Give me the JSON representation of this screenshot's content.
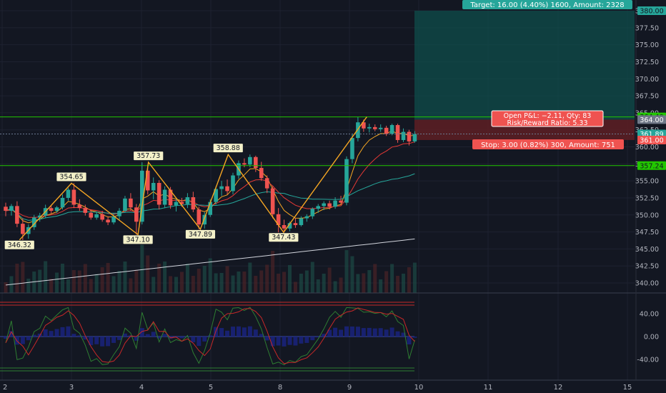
{
  "colors": {
    "background": "#131722",
    "up": "#26a69a",
    "down": "#ef5350",
    "ma_fast": "#f5a623",
    "ma_mid": "#e53935",
    "ma_slow": "#26a69a",
    "ma_long": "#d1d4dc",
    "level_line": "#22c700",
    "target_zone": "#0f4d4b",
    "stop_zone": "#5a1e24",
    "zigzag": "#f5a623"
  },
  "price_axis": {
    "ticks": [
      "380.00",
      "377.50",
      "375.00",
      "372.50",
      "370.00",
      "367.50",
      "365.00",
      "362.50",
      "360.00",
      "357.50",
      "355.00",
      "352.50",
      "350.00",
      "347.50",
      "345.00",
      "342.50",
      "340.00"
    ],
    "badges": [
      {
        "text": "380.00",
        "kind": "target"
      },
      {
        "text": "364.40",
        "kind": "level"
      },
      {
        "text": "364.00",
        "kind": "entry"
      },
      {
        "text": "361.89",
        "kind": "last"
      },
      {
        "text": "361.00",
        "kind": "stop"
      },
      {
        "text": "357.24",
        "kind": "level"
      }
    ]
  },
  "oscillator_axis": {
    "ticks": [
      "40.00",
      "0.00",
      "-40.00"
    ]
  },
  "time_axis": {
    "ticks": [
      "2",
      "3",
      "4",
      "5",
      "8",
      "9",
      "10",
      "11",
      "12",
      "15"
    ]
  },
  "position": {
    "target_label": "Target: 16.00 (4.40%) 1600, Amount: 2328",
    "pnl_label_1": "Open P&L: −2.11, Qty: 83",
    "pnl_label_2": "Risk/Reward Ratio: 5.33",
    "stop_label": "Stop: 3.00 (0.82%) 300, Amount: 751",
    "entry": 364.0,
    "target": 380.0,
    "stop": 361.0
  },
  "pivots": [
    "346.32",
    "354.65",
    "347.10",
    "357.73",
    "347.89",
    "358.88",
    "347.43"
  ],
  "chart_data": {
    "type": "candlestick",
    "x_ticks": [
      "2",
      "3",
      "4",
      "5",
      "8",
      "9",
      "10",
      "11",
      "12",
      "15"
    ],
    "ylim": [
      339,
      381
    ],
    "horizontal_levels": [
      364.4,
      357.24
    ],
    "last_price": 361.89,
    "zigzag": [
      {
        "day": 2.25,
        "price": 346.32
      },
      {
        "day": 3.0,
        "price": 354.65
      },
      {
        "day": 3.95,
        "price": 347.1
      },
      {
        "day": 4.1,
        "price": 357.73
      },
      {
        "day": 4.85,
        "price": 347.89
      },
      {
        "day": 5.75,
        "price": 358.88
      },
      {
        "day": 8.05,
        "price": 347.43
      },
      {
        "day": 9.25,
        "price": 364.4
      }
    ],
    "candles": [
      {
        "o": 351.2,
        "h": 351.8,
        "l": 349.8,
        "c": 350.6
      },
      {
        "o": 350.6,
        "h": 351.6,
        "l": 349.9,
        "c": 351.3
      },
      {
        "o": 351.3,
        "h": 352.0,
        "l": 348.2,
        "c": 348.7
      },
      {
        "o": 348.7,
        "h": 349.5,
        "l": 346.3,
        "c": 347.2
      },
      {
        "o": 347.2,
        "h": 348.6,
        "l": 346.5,
        "c": 348.2
      },
      {
        "o": 348.2,
        "h": 350.0,
        "l": 347.8,
        "c": 349.6
      },
      {
        "o": 349.6,
        "h": 350.3,
        "l": 349.0,
        "c": 349.9
      },
      {
        "o": 349.9,
        "h": 351.5,
        "l": 349.5,
        "c": 351.0
      },
      {
        "o": 351.0,
        "h": 351.4,
        "l": 350.2,
        "c": 350.6
      },
      {
        "o": 350.6,
        "h": 351.3,
        "l": 350.3,
        "c": 351.1
      },
      {
        "o": 351.1,
        "h": 353.0,
        "l": 350.8,
        "c": 352.5
      },
      {
        "o": 352.5,
        "h": 354.0,
        "l": 352.1,
        "c": 353.7
      },
      {
        "o": 353.7,
        "h": 354.65,
        "l": 351.0,
        "c": 351.5
      },
      {
        "o": 351.5,
        "h": 352.3,
        "l": 350.6,
        "c": 351.0
      },
      {
        "o": 351.0,
        "h": 351.5,
        "l": 349.9,
        "c": 350.3
      },
      {
        "o": 350.3,
        "h": 350.8,
        "l": 349.3,
        "c": 349.6
      },
      {
        "o": 349.6,
        "h": 350.5,
        "l": 349.3,
        "c": 350.1
      },
      {
        "o": 350.1,
        "h": 350.6,
        "l": 349.0,
        "c": 349.3
      },
      {
        "o": 349.3,
        "h": 349.8,
        "l": 348.5,
        "c": 348.9
      },
      {
        "o": 348.9,
        "h": 350.2,
        "l": 348.6,
        "c": 349.8
      },
      {
        "o": 349.8,
        "h": 351.0,
        "l": 349.2,
        "c": 350.6
      },
      {
        "o": 350.6,
        "h": 352.8,
        "l": 350.3,
        "c": 352.4
      },
      {
        "o": 352.4,
        "h": 353.2,
        "l": 350.6,
        "c": 351.1
      },
      {
        "o": 351.1,
        "h": 351.6,
        "l": 347.1,
        "c": 349.0
      },
      {
        "o": 349.0,
        "h": 357.73,
        "l": 348.6,
        "c": 356.5
      },
      {
        "o": 356.5,
        "h": 357.2,
        "l": 353.0,
        "c": 353.6
      },
      {
        "o": 353.6,
        "h": 355.5,
        "l": 352.3,
        "c": 354.7
      },
      {
        "o": 354.7,
        "h": 355.1,
        "l": 350.8,
        "c": 351.5
      },
      {
        "o": 351.5,
        "h": 354.2,
        "l": 351.0,
        "c": 353.7
      },
      {
        "o": 353.7,
        "h": 354.1,
        "l": 350.9,
        "c": 351.4
      },
      {
        "o": 351.4,
        "h": 352.3,
        "l": 350.5,
        "c": 351.9
      },
      {
        "o": 351.9,
        "h": 352.5,
        "l": 351.2,
        "c": 351.6
      },
      {
        "o": 351.6,
        "h": 353.2,
        "l": 351.0,
        "c": 352.6
      },
      {
        "o": 352.6,
        "h": 353.4,
        "l": 350.4,
        "c": 350.8
      },
      {
        "o": 350.8,
        "h": 351.2,
        "l": 347.9,
        "c": 348.6
      },
      {
        "o": 348.6,
        "h": 350.4,
        "l": 348.0,
        "c": 350.0
      },
      {
        "o": 350.0,
        "h": 352.3,
        "l": 349.7,
        "c": 351.9
      },
      {
        "o": 351.9,
        "h": 354.2,
        "l": 351.5,
        "c": 353.8
      },
      {
        "o": 353.8,
        "h": 355.0,
        "l": 352.8,
        "c": 354.2
      },
      {
        "o": 354.2,
        "h": 355.2,
        "l": 353.0,
        "c": 353.5
      },
      {
        "o": 353.5,
        "h": 356.2,
        "l": 353.0,
        "c": 355.8
      },
      {
        "o": 355.8,
        "h": 358.0,
        "l": 355.3,
        "c": 357.6
      },
      {
        "o": 357.6,
        "h": 358.3,
        "l": 357.0,
        "c": 357.4
      },
      {
        "o": 357.4,
        "h": 358.88,
        "l": 357.0,
        "c": 358.5
      },
      {
        "o": 358.5,
        "h": 358.7,
        "l": 356.3,
        "c": 356.9
      },
      {
        "o": 356.9,
        "h": 357.8,
        "l": 355.0,
        "c": 355.4
      },
      {
        "o": 355.4,
        "h": 355.8,
        "l": 353.2,
        "c": 353.9
      },
      {
        "o": 353.9,
        "h": 354.3,
        "l": 349.5,
        "c": 350.1
      },
      {
        "o": 350.1,
        "h": 351.0,
        "l": 347.43,
        "c": 348.5
      },
      {
        "o": 348.5,
        "h": 349.3,
        "l": 347.6,
        "c": 348.0
      },
      {
        "o": 348.0,
        "h": 349.0,
        "l": 347.6,
        "c": 348.8
      },
      {
        "o": 348.8,
        "h": 349.5,
        "l": 348.1,
        "c": 348.5
      },
      {
        "o": 348.5,
        "h": 349.8,
        "l": 348.3,
        "c": 349.5
      },
      {
        "o": 349.5,
        "h": 350.1,
        "l": 349.0,
        "c": 349.8
      },
      {
        "o": 349.8,
        "h": 351.1,
        "l": 349.4,
        "c": 350.9
      },
      {
        "o": 350.9,
        "h": 351.6,
        "l": 350.3,
        "c": 351.3
      },
      {
        "o": 351.3,
        "h": 352.0,
        "l": 350.7,
        "c": 351.7
      },
      {
        "o": 351.7,
        "h": 352.1,
        "l": 350.8,
        "c": 351.2
      },
      {
        "o": 351.2,
        "h": 352.6,
        "l": 350.9,
        "c": 352.1
      },
      {
        "o": 352.1,
        "h": 352.8,
        "l": 351.6,
        "c": 351.8
      },
      {
        "o": 351.8,
        "h": 358.6,
        "l": 351.4,
        "c": 358.2
      },
      {
        "o": 358.2,
        "h": 361.9,
        "l": 357.6,
        "c": 361.3
      },
      {
        "o": 361.3,
        "h": 364.4,
        "l": 360.8,
        "c": 363.6
      },
      {
        "o": 363.6,
        "h": 364.0,
        "l": 362.2,
        "c": 362.7
      },
      {
        "o": 362.7,
        "h": 363.4,
        "l": 362.1,
        "c": 362.9
      },
      {
        "o": 362.9,
        "h": 363.3,
        "l": 362.3,
        "c": 362.6
      },
      {
        "o": 362.6,
        "h": 363.3,
        "l": 362.2,
        "c": 362.8
      },
      {
        "o": 362.8,
        "h": 363.1,
        "l": 361.6,
        "c": 361.9
      },
      {
        "o": 361.9,
        "h": 363.4,
        "l": 361.7,
        "c": 363.2
      },
      {
        "o": 363.2,
        "h": 363.4,
        "l": 360.6,
        "c": 361.0
      },
      {
        "o": 361.0,
        "h": 362.7,
        "l": 360.7,
        "c": 362.2
      },
      {
        "o": 362.2,
        "h": 362.5,
        "l": 360.2,
        "c": 360.8
      },
      {
        "o": 360.8,
        "h": 362.3,
        "l": 360.6,
        "c": 361.89
      }
    ]
  }
}
